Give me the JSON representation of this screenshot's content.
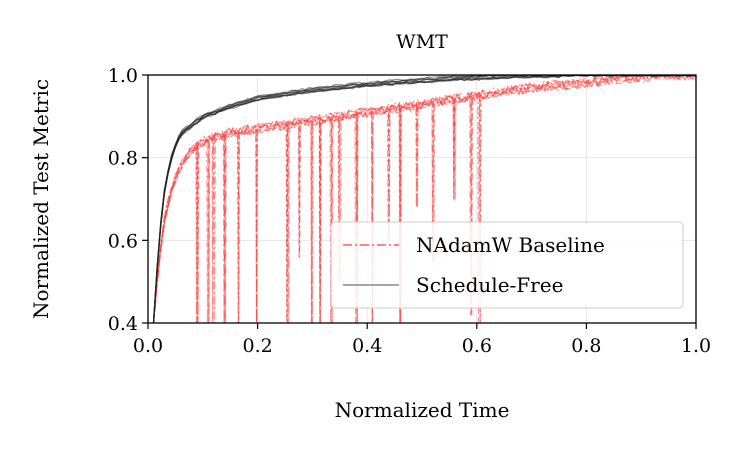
{
  "chart_data": {
    "type": "line",
    "title": "WMT",
    "xlabel": "Normalized Time",
    "ylabel": "Normalized Test Metric",
    "xlim": [
      0.0,
      1.0
    ],
    "ylim": [
      0.4,
      1.0
    ],
    "xticks": [
      0.0,
      0.2,
      0.4,
      0.6,
      0.8,
      1.0
    ],
    "xtick_labels": [
      "0.0",
      "0.2",
      "0.4",
      "0.6",
      "0.8",
      "1.0"
    ],
    "yticks": [
      0.4,
      0.6,
      0.8,
      1.0
    ],
    "ytick_labels": [
      "0.4",
      "0.6",
      "0.8",
      "1.0"
    ],
    "grid": true,
    "legend_position": "lower-right",
    "series": [
      {
        "name": "NAdamW Baseline",
        "color": "#ff3b3b",
        "style": "dashdot",
        "runs": 10,
        "x": [
          0.01,
          0.02,
          0.03,
          0.04,
          0.05,
          0.06,
          0.08,
          0.1,
          0.15,
          0.2,
          0.25,
          0.3,
          0.35,
          0.4,
          0.45,
          0.5,
          0.55,
          0.6,
          0.65,
          0.7,
          0.75,
          0.8,
          0.85,
          0.9,
          0.95,
          1.0
        ],
        "values": [
          0.4,
          0.55,
          0.65,
          0.71,
          0.75,
          0.78,
          0.82,
          0.84,
          0.86,
          0.87,
          0.88,
          0.89,
          0.9,
          0.91,
          0.92,
          0.93,
          0.94,
          0.95,
          0.96,
          0.97,
          0.975,
          0.98,
          0.99,
          0.995,
          1.0,
          1.0
        ],
        "dips": [
          {
            "x": 0.09,
            "y": 0.4
          },
          {
            "x": 0.11,
            "y": 0.4
          },
          {
            "x": 0.12,
            "y": 0.4
          },
          {
            "x": 0.14,
            "y": 0.4
          },
          {
            "x": 0.165,
            "y": 0.4
          },
          {
            "x": 0.2,
            "y": 0.4
          },
          {
            "x": 0.255,
            "y": 0.4
          },
          {
            "x": 0.275,
            "y": 0.56
          },
          {
            "x": 0.3,
            "y": 0.4
          },
          {
            "x": 0.315,
            "y": 0.4
          },
          {
            "x": 0.335,
            "y": 0.4
          },
          {
            "x": 0.35,
            "y": 0.5
          },
          {
            "x": 0.38,
            "y": 0.4
          },
          {
            "x": 0.41,
            "y": 0.4
          },
          {
            "x": 0.44,
            "y": 0.6
          },
          {
            "x": 0.46,
            "y": 0.4
          },
          {
            "x": 0.49,
            "y": 0.68
          },
          {
            "x": 0.52,
            "y": 0.55
          },
          {
            "x": 0.56,
            "y": 0.7
          },
          {
            "x": 0.59,
            "y": 0.42
          },
          {
            "x": 0.605,
            "y": 0.4
          }
        ]
      },
      {
        "name": "Schedule-Free",
        "color": "#222222",
        "style": "solid",
        "runs": 10,
        "x": [
          0.01,
          0.02,
          0.03,
          0.04,
          0.05,
          0.06,
          0.08,
          0.1,
          0.15,
          0.2,
          0.25,
          0.3,
          0.35,
          0.4,
          0.45,
          0.5,
          0.55,
          0.6,
          0.65,
          0.7,
          0.8,
          0.9,
          1.0
        ],
        "values": [
          0.4,
          0.6,
          0.72,
          0.79,
          0.83,
          0.86,
          0.88,
          0.9,
          0.925,
          0.945,
          0.955,
          0.965,
          0.972,
          0.978,
          0.983,
          0.988,
          0.992,
          0.995,
          0.998,
          1.0,
          1.0,
          1.0,
          1.0
        ]
      }
    ]
  }
}
